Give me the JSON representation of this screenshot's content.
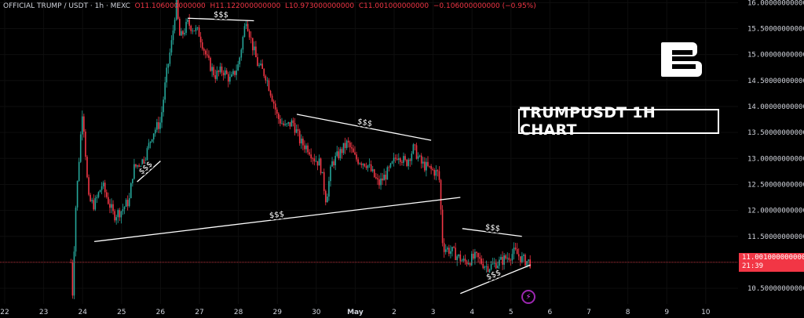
{
  "header": {
    "symbol": "OFFICIAL TRUMP / USDT · 1h · MEXC",
    "open": "O11.106000000000",
    "high": "H11.122000000000",
    "low": "L10.973000000000",
    "close": "C11.001000000000",
    "change": "−0.106000000000 (−0.95%)"
  },
  "title_box": "TRUMPUSDT 1H CHART",
  "current_price": {
    "value": "11.001000000000",
    "countdown": "21:39"
  },
  "colors": {
    "up": "#26a69a",
    "down": "#f23645",
    "background": "#000000",
    "text": "#d1d4dc"
  },
  "icons": [
    "brand-logo-icon",
    "lightning-icon"
  ],
  "chart_data": {
    "type": "candlestick",
    "y_ticks": [
      "10.500000000000",
      "11.000000000000",
      "11.500000000000",
      "12.000000000000",
      "12.500000000000",
      "13.000000000000",
      "13.500000000000",
      "14.000000000000",
      "14.500000000000",
      "15.000000000000",
      "15.500000000000",
      "16.000000000000"
    ],
    "x_ticks": [
      "22",
      "23",
      "24",
      "25",
      "26",
      "27",
      "28",
      "29",
      "30",
      "May",
      "2",
      "3",
      "4",
      "5",
      "6",
      "7",
      "8",
      "9",
      "10"
    ],
    "ylim": [
      10.2,
      16.05
    ],
    "current_price": 11.001,
    "path": [
      [
        23.7,
        11.0
      ],
      [
        23.75,
        10.3
      ],
      [
        23.8,
        11.8
      ],
      [
        24.0,
        14.0
      ],
      [
        24.15,
        12.2
      ],
      [
        24.3,
        12.1
      ],
      [
        24.5,
        12.5
      ],
      [
        24.8,
        11.9
      ],
      [
        25.0,
        12.0
      ],
      [
        25.2,
        12.2
      ],
      [
        25.3,
        12.8
      ],
      [
        25.6,
        13.0
      ],
      [
        25.8,
        13.5
      ],
      [
        26.0,
        13.7
      ],
      [
        26.15,
        14.6
      ],
      [
        26.3,
        15.3
      ],
      [
        26.4,
        16.0
      ],
      [
        26.5,
        15.3
      ],
      [
        26.7,
        15.6
      ],
      [
        27.0,
        15.4
      ],
      [
        27.2,
        14.9
      ],
      [
        27.4,
        14.6
      ],
      [
        27.6,
        14.7
      ],
      [
        27.8,
        14.5
      ],
      [
        28.0,
        14.8
      ],
      [
        28.2,
        15.7
      ],
      [
        28.35,
        15.2
      ],
      [
        28.5,
        14.8
      ],
      [
        28.7,
        14.6
      ],
      [
        28.9,
        14.1
      ],
      [
        29.0,
        13.8
      ],
      [
        29.2,
        13.6
      ],
      [
        29.4,
        13.7
      ],
      [
        29.6,
        13.3
      ],
      [
        29.8,
        13.2
      ],
      [
        29.95,
        13.0
      ],
      [
        30.1,
        12.9
      ],
      [
        30.25,
        12.2
      ],
      [
        30.4,
        12.9
      ],
      [
        30.6,
        13.1
      ],
      [
        30.8,
        13.3
      ],
      [
        31.0,
        13.0
      ],
      [
        31.3,
        12.9
      ],
      [
        31.6,
        12.5
      ],
      [
        31.9,
        12.8
      ],
      [
        32.1,
        13.1
      ],
      [
        32.3,
        12.9
      ],
      [
        32.5,
        13.2
      ],
      [
        32.7,
        12.9
      ],
      [
        32.9,
        12.8
      ],
      [
        33.15,
        12.7
      ],
      [
        33.25,
        11.3
      ],
      [
        33.5,
        11.2
      ],
      [
        33.8,
        11.0
      ],
      [
        34.1,
        11.1
      ],
      [
        34.4,
        10.9
      ],
      [
        34.7,
        11.0
      ],
      [
        34.9,
        11.1
      ],
      [
        35.1,
        11.2
      ],
      [
        35.3,
        11.05
      ],
      [
        35.5,
        11.0
      ]
    ],
    "annotations": [
      {
        "label": "$$$",
        "from": [
          24.3,
          11.4
        ],
        "to": [
          33.7,
          12.25
        ]
      },
      {
        "label": "$$$",
        "from": [
          25.4,
          12.55
        ],
        "to": [
          26.0,
          12.95
        ]
      },
      {
        "label": "$$$",
        "from": [
          26.7,
          15.7
        ],
        "to": [
          28.4,
          15.65
        ]
      },
      {
        "label": "$$$",
        "from": [
          29.5,
          13.85
        ],
        "to": [
          32.95,
          13.35
        ]
      },
      {
        "label": "$$$",
        "from": [
          33.75,
          11.65
        ],
        "to": [
          35.28,
          11.5
        ]
      },
      {
        "label": "$$$",
        "from": [
          33.7,
          10.4
        ],
        "to": [
          35.5,
          10.95
        ]
      }
    ]
  }
}
